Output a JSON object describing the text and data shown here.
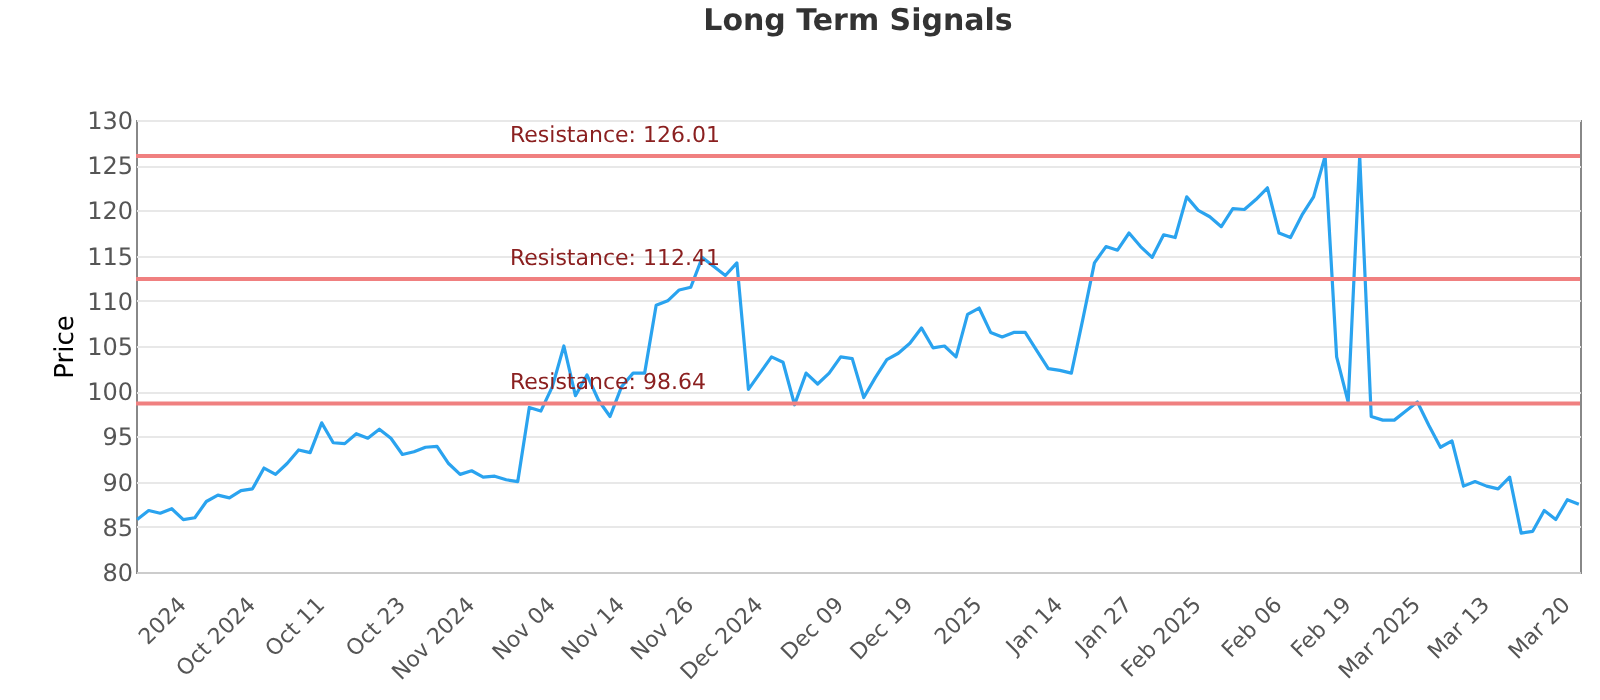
{
  "chart_data": {
    "type": "line",
    "title": "Long Term Signals",
    "ylabel": "Price",
    "categories": [
      null,
      null,
      null,
      null,
      "2024",
      null,
      null,
      null,
      null,
      null,
      "Oct 2024",
      null,
      null,
      null,
      null,
      null,
      "Oct 11",
      null,
      null,
      null,
      null,
      null,
      null,
      "Oct 23",
      null,
      null,
      null,
      null,
      null,
      "Nov 2024",
      null,
      null,
      null,
      null,
      null,
      null,
      "Nov 04",
      null,
      null,
      null,
      null,
      null,
      "Nov 14",
      null,
      null,
      null,
      null,
      null,
      "Nov 26",
      null,
      null,
      null,
      null,
      null,
      "Dec 2024",
      null,
      null,
      null,
      null,
      null,
      null,
      "Dec 09",
      null,
      null,
      null,
      null,
      null,
      "Dec 19",
      null,
      null,
      null,
      null,
      null,
      "2025",
      null,
      null,
      null,
      null,
      null,
      null,
      "Jan 14",
      null,
      null,
      null,
      null,
      null,
      "Jan 27",
      null,
      null,
      null,
      null,
      null,
      "Feb 2025",
      null,
      null,
      null,
      null,
      null,
      null,
      "Feb 06",
      null,
      null,
      null,
      null,
      null,
      "Feb 19",
      null,
      null,
      null,
      null,
      null,
      "Mar 2025",
      null,
      null,
      null,
      null,
      null,
      "Mar 13",
      null,
      null,
      null,
      null,
      null,
      null,
      "Mar 20",
      null
    ],
    "series": [
      {
        "color": "#2aa3ef",
        "values": [
          85.8,
          86.8,
          86.5,
          87,
          85.8,
          86,
          87.8,
          88.5,
          88.2,
          89,
          89.2,
          91.5,
          90.8,
          92,
          93.5,
          93.2,
          96.5,
          94.3,
          94.2,
          95.3,
          94.8,
          95.8,
          94.8,
          93,
          93.3,
          93.8,
          93.9,
          92,
          90.8,
          91.2,
          90.5,
          90.6,
          90.2,
          90,
          98.2,
          97.8,
          100.5,
          105,
          99.5,
          101.8,
          99,
          97.2,
          100.5,
          102,
          102,
          109.5,
          110,
          111.2,
          111.5,
          114.8,
          113.8,
          112.8,
          114.2,
          100.2,
          102,
          103.8,
          103.2,
          98.5,
          102,
          100.8,
          102,
          103.8,
          103.6,
          99.3,
          101.5,
          103.5,
          104.2,
          105.3,
          107,
          104.8,
          105,
          103.8,
          108.5,
          109.2,
          106.5,
          106,
          106.5,
          106.5,
          104.5,
          102.5,
          102.3,
          102,
          108,
          114.2,
          116,
          115.6,
          117.5,
          116,
          114.8,
          117.3,
          117,
          121.5,
          120,
          119.3,
          118.2,
          120.2,
          120.1,
          121.2,
          122.5,
          117.5,
          117,
          119.5,
          121.5,
          126,
          103.8,
          98.8,
          126,
          97.2,
          96.8,
          96.8,
          97.8,
          98.8,
          96.2,
          93.8,
          94.5,
          89.5,
          90,
          89.5,
          89.2,
          90.5,
          84.3,
          84.5,
          86.8,
          85.8,
          88,
          87.5
        ]
      }
    ],
    "ylim": [
      80,
      130
    ],
    "yticks": [
      80,
      85,
      90,
      95,
      100,
      105,
      110,
      115,
      120,
      125,
      130
    ],
    "grid": "y",
    "marker": "none",
    "ref_lines": [
      {
        "axis": "y",
        "value": 126.01,
        "label": "Resistance: 126.01",
        "color": "#f08080"
      },
      {
        "axis": "y",
        "value": 112.41,
        "label": "Resistance: 112.41",
        "color": "#f08080"
      },
      {
        "axis": "y",
        "value": 98.64,
        "label": "Resistance: 98.64",
        "color": "#f08080"
      }
    ]
  }
}
